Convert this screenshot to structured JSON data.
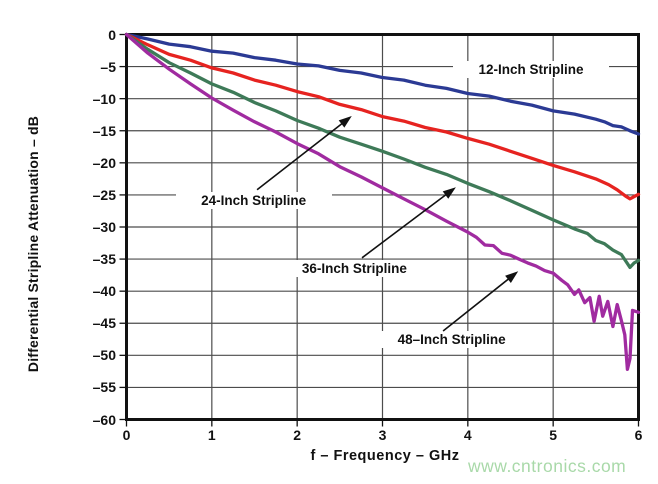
{
  "watermark": {
    "text": "www.cntronics.com",
    "color": "#a9d9a9"
  },
  "chart_data": {
    "type": "line",
    "title": "",
    "xlabel": "f – Frequency – GHz",
    "ylabel": "Differential Stripline Attenuation – dB",
    "xlim": [
      0,
      6
    ],
    "ylim": [
      -60,
      0
    ],
    "x_ticks": [
      0,
      1,
      2,
      3,
      4,
      5,
      6
    ],
    "x_tick_labels": [
      "0",
      "1",
      "2",
      "3",
      "4",
      "5",
      "6"
    ],
    "y_ticks": [
      0,
      -5,
      -10,
      -15,
      -20,
      -25,
      -30,
      -35,
      -40,
      -45,
      -50,
      -55,
      -60
    ],
    "y_tick_labels": [
      "0",
      "–5",
      "–10",
      "–15",
      "–20",
      "–25",
      "–30",
      "–35",
      "–40",
      "–45",
      "–50",
      "–55",
      "–60"
    ],
    "grid": "on",
    "grid_color": "#4c4c4c",
    "axis_color": "#111111",
    "legend_position": "inline-labels",
    "series": [
      {
        "name": "12-Inch Stripline",
        "color": "#2b3a94",
        "label_anchor": [
          4.74,
          -5.4
        ],
        "arrow": null,
        "points": [
          [
            0,
            0
          ],
          [
            0.25,
            -0.7
          ],
          [
            0.5,
            -1.5
          ],
          [
            0.75,
            -1.9
          ],
          [
            1,
            -2.6
          ],
          [
            1.25,
            -2.9
          ],
          [
            1.5,
            -3.6
          ],
          [
            1.75,
            -4.0
          ],
          [
            2,
            -4.6
          ],
          [
            2.25,
            -4.9
          ],
          [
            2.5,
            -5.6
          ],
          [
            2.75,
            -6.0
          ],
          [
            3,
            -6.7
          ],
          [
            3.25,
            -7.1
          ],
          [
            3.5,
            -7.9
          ],
          [
            3.75,
            -8.4
          ],
          [
            4,
            -9.2
          ],
          [
            4.25,
            -9.6
          ],
          [
            4.5,
            -10.4
          ],
          [
            4.75,
            -11.0
          ],
          [
            5,
            -11.9
          ],
          [
            5.25,
            -12.4
          ],
          [
            5.5,
            -13.2
          ],
          [
            5.6,
            -13.6
          ],
          [
            5.7,
            -14.2
          ],
          [
            5.8,
            -14.4
          ],
          [
            5.9,
            -15.0
          ],
          [
            6,
            -15.5
          ]
        ]
      },
      {
        "name": "24-Inch Stripline",
        "color": "#e62320",
        "label_anchor": [
          1.49,
          -25.8
        ],
        "arrow": {
          "from": [
            1.53,
            -24.2
          ],
          "to": [
            2.64,
            -12.7
          ]
        },
        "points": [
          [
            0,
            0
          ],
          [
            0.25,
            -1.6
          ],
          [
            0.5,
            -3.1
          ],
          [
            0.75,
            -4.0
          ],
          [
            1,
            -5.2
          ],
          [
            1.25,
            -6.0
          ],
          [
            1.5,
            -7.1
          ],
          [
            1.75,
            -7.9
          ],
          [
            2,
            -8.9
          ],
          [
            2.25,
            -9.7
          ],
          [
            2.5,
            -10.9
          ],
          [
            2.75,
            -11.7
          ],
          [
            3,
            -12.8
          ],
          [
            3.25,
            -13.5
          ],
          [
            3.5,
            -14.5
          ],
          [
            3.75,
            -15.2
          ],
          [
            4,
            -16.2
          ],
          [
            4.25,
            -17.1
          ],
          [
            4.5,
            -18.2
          ],
          [
            4.75,
            -19.3
          ],
          [
            5,
            -20.4
          ],
          [
            5.25,
            -21.4
          ],
          [
            5.5,
            -22.5
          ],
          [
            5.65,
            -23.4
          ],
          [
            5.75,
            -24.2
          ],
          [
            5.85,
            -25.2
          ],
          [
            5.9,
            -25.6
          ],
          [
            6,
            -24.9
          ]
        ]
      },
      {
        "name": "36-Inch Stripline",
        "color": "#3e7a58",
        "label_anchor": [
          2.67,
          -36.4
        ],
        "arrow": {
          "from": [
            2.76,
            -34.8
          ],
          "to": [
            3.86,
            -23.8
          ]
        },
        "points": [
          [
            0,
            0
          ],
          [
            0.25,
            -2.3
          ],
          [
            0.5,
            -4.4
          ],
          [
            0.75,
            -6.0
          ],
          [
            1,
            -7.7
          ],
          [
            1.25,
            -9.0
          ],
          [
            1.5,
            -10.6
          ],
          [
            1.75,
            -11.9
          ],
          [
            2,
            -13.4
          ],
          [
            2.25,
            -14.6
          ],
          [
            2.5,
            -16.0
          ],
          [
            2.75,
            -17.1
          ],
          [
            3,
            -18.2
          ],
          [
            3.25,
            -19.4
          ],
          [
            3.5,
            -20.7
          ],
          [
            3.75,
            -21.8
          ],
          [
            4,
            -23.2
          ],
          [
            4.25,
            -24.5
          ],
          [
            4.5,
            -25.9
          ],
          [
            4.75,
            -27.4
          ],
          [
            5,
            -28.9
          ],
          [
            5.25,
            -30.3
          ],
          [
            5.4,
            -31.0
          ],
          [
            5.5,
            -32.1
          ],
          [
            5.6,
            -32.6
          ],
          [
            5.7,
            -33.6
          ],
          [
            5.8,
            -34.3
          ],
          [
            5.85,
            -35.3
          ],
          [
            5.9,
            -36.3
          ],
          [
            5.95,
            -35.6
          ],
          [
            6,
            -35.2
          ]
        ]
      },
      {
        "name": "48–Inch Stripline",
        "color": "#a02ba0",
        "label_anchor": [
          3.81,
          -47.6
        ],
        "arrow": {
          "from": [
            3.71,
            -46.2
          ],
          "to": [
            4.59,
            -36.9
          ]
        },
        "points": [
          [
            0,
            0
          ],
          [
            0.25,
            -2.9
          ],
          [
            0.5,
            -5.4
          ],
          [
            0.75,
            -7.7
          ],
          [
            1,
            -9.9
          ],
          [
            1.25,
            -11.8
          ],
          [
            1.5,
            -13.6
          ],
          [
            1.75,
            -15.2
          ],
          [
            2,
            -17.0
          ],
          [
            2.25,
            -18.6
          ],
          [
            2.5,
            -20.6
          ],
          [
            2.75,
            -22.2
          ],
          [
            3,
            -23.9
          ],
          [
            3.25,
            -25.6
          ],
          [
            3.5,
            -27.3
          ],
          [
            3.75,
            -29.1
          ],
          [
            4,
            -30.8
          ],
          [
            4.1,
            -31.6
          ],
          [
            4.2,
            -32.8
          ],
          [
            4.3,
            -32.9
          ],
          [
            4.4,
            -34.1
          ],
          [
            4.5,
            -34.4
          ],
          [
            4.6,
            -35.0
          ],
          [
            4.7,
            -35.6
          ],
          [
            4.8,
            -36.1
          ],
          [
            4.9,
            -36.8
          ],
          [
            5,
            -37.2
          ],
          [
            5.1,
            -38.3
          ],
          [
            5.17,
            -39.0
          ],
          [
            5.25,
            -40.5
          ],
          [
            5.3,
            -39.8
          ],
          [
            5.37,
            -41.8
          ],
          [
            5.43,
            -41.0
          ],
          [
            5.48,
            -44.7
          ],
          [
            5.54,
            -40.8
          ],
          [
            5.58,
            -43.9
          ],
          [
            5.64,
            -41.6
          ],
          [
            5.7,
            -45.5
          ],
          [
            5.75,
            -42.1
          ],
          [
            5.8,
            -44.6
          ],
          [
            5.84,
            -46.8
          ],
          [
            5.87,
            -52.2
          ],
          [
            5.9,
            -50.5
          ],
          [
            5.93,
            -43.0
          ],
          [
            6,
            -43.3
          ]
        ]
      }
    ]
  }
}
